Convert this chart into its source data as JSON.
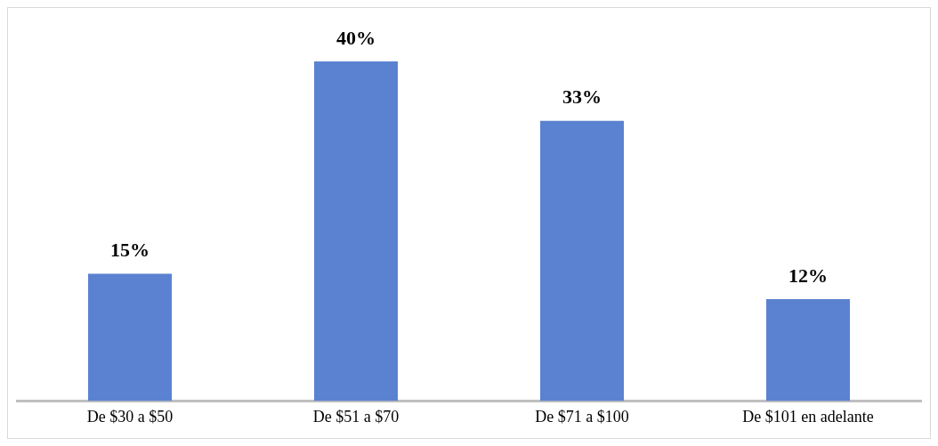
{
  "chart_data": {
    "type": "bar",
    "categories": [
      "De $30 a $50",
      "De $51 a $70",
      "De $71 a $100",
      "De $101 en adelante"
    ],
    "values": [
      15,
      40,
      33,
      12
    ],
    "value_labels": [
      "15%",
      "40%",
      "33%",
      "12%"
    ],
    "color": "#5b82d0",
    "grid": false,
    "legend": false
  }
}
